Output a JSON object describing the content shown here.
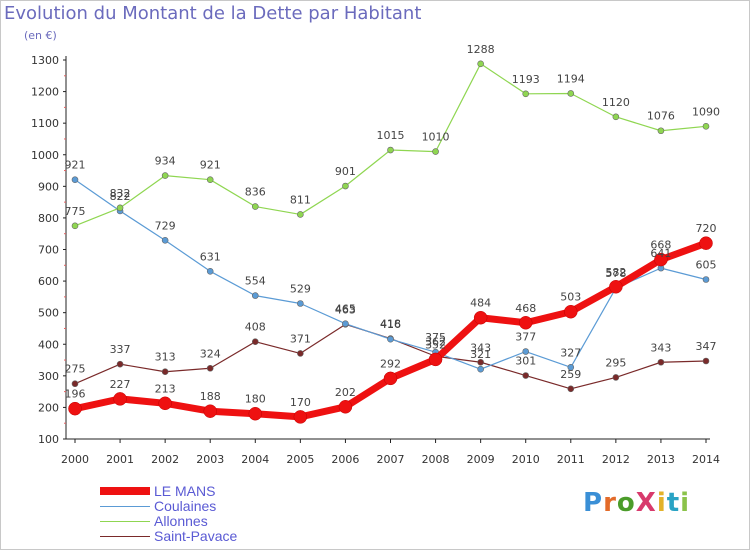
{
  "title": "Evolution du Montant de la Dette par Habitant",
  "unit": "(en €)",
  "brand": {
    "text": "ProXiti",
    "letters": [
      "P",
      "r",
      "o",
      "X",
      "i",
      "t",
      "i"
    ],
    "colors": [
      "#3a8fd6",
      "#e36b2a",
      "#4b9c2a",
      "#d83a6c",
      "#e3b22a",
      "#2aa3c4",
      "#8bc34a"
    ]
  },
  "chart_data": {
    "type": "line",
    "title": "Evolution du Montant de la Dette par Habitant",
    "ylabel": "(en €)",
    "xlabel": "",
    "x": [
      "2000",
      "2001",
      "2002",
      "2003",
      "2004",
      "2005",
      "2006",
      "2007",
      "2008",
      "2009",
      "2010",
      "2011",
      "2012",
      "2013",
      "2014"
    ],
    "ylim": [
      100,
      1300
    ],
    "yticks": [
      100,
      200,
      300,
      400,
      500,
      600,
      700,
      800,
      900,
      1000,
      1100,
      1200,
      1300
    ],
    "grid": false,
    "legend_position": "bottom-left",
    "series": [
      {
        "name": "LE MANS",
        "color": "#ee1111",
        "bold": true,
        "values": [
          196,
          227,
          213,
          188,
          180,
          170,
          202,
          292,
          352,
          484,
          468,
          503,
          582,
          668,
          720
        ],
        "labels": [
          "196",
          "227",
          "213",
          "188",
          "180",
          "170",
          "202",
          "292",
          "352",
          "484",
          "468",
          "503",
          "582",
          "668",
          "720"
        ]
      },
      {
        "name": "Coulaines",
        "color": "#5b9bd5",
        "values": [
          921,
          822,
          729,
          631,
          554,
          529,
          465,
          416,
          375,
          321,
          377,
          327,
          578,
          641,
          605
        ],
        "labels": [
          "921",
          "822",
          "729",
          "631",
          "554",
          "529",
          "465",
          "416",
          "375",
          "321",
          "377",
          "327",
          "578",
          "641",
          "605"
        ]
      },
      {
        "name": "Allonnes",
        "color": "#8fd651",
        "values": [
          775,
          832,
          934,
          921,
          836,
          811,
          901,
          1015,
          1010,
          1288,
          1193,
          1194,
          1120,
          1076,
          1090
        ],
        "labels": [
          "775",
          "832",
          "934",
          "921",
          "836",
          "811",
          "901",
          "1015",
          "1010",
          "1288",
          "1193",
          "1194",
          "1120",
          "1076",
          "1090"
        ]
      },
      {
        "name": "Saint-Pavace",
        "color": "#7a2a2a",
        "values": [
          275,
          337,
          313,
          324,
          408,
          371,
          463,
          418,
          362,
          343,
          301,
          259,
          295,
          343,
          347
        ],
        "labels": [
          "275",
          "337",
          "313",
          "324",
          "408",
          "371",
          "463",
          "418",
          "362",
          "343",
          "301",
          "259",
          "295",
          "343",
          "347"
        ]
      }
    ]
  }
}
